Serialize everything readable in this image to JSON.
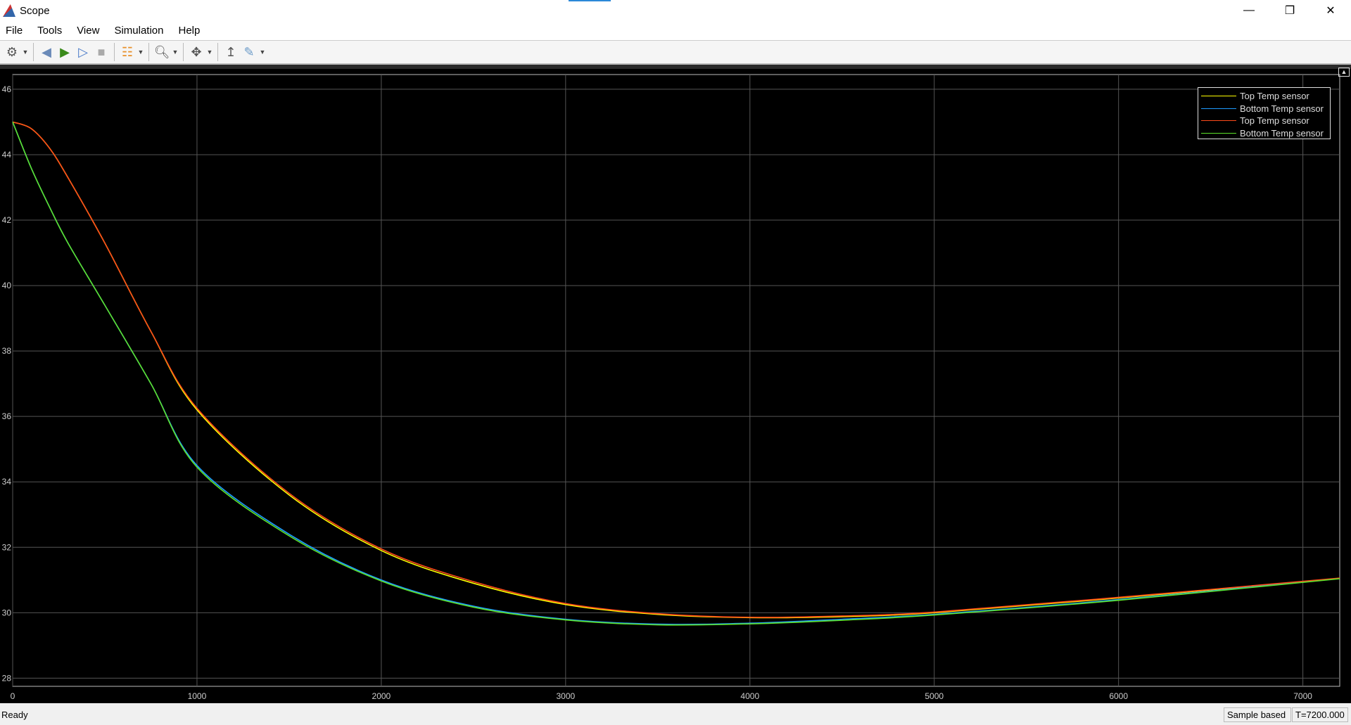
{
  "window": {
    "title": "Scope"
  },
  "menu": [
    "File",
    "Tools",
    "View",
    "Simulation",
    "Help"
  ],
  "toolbar": [
    {
      "icon": "settings-icon",
      "dropdown": true
    },
    {
      "icon": "step-back-icon"
    },
    {
      "icon": "run-icon"
    },
    {
      "icon": "step-forward-icon"
    },
    {
      "icon": "stop-icon"
    },
    {
      "icon": "signal-highlight-icon",
      "dropdown": true
    },
    {
      "icon": "zoom-in-icon",
      "dropdown": true
    },
    {
      "icon": "autoscale-icon",
      "dropdown": true
    },
    {
      "icon": "triggers-icon"
    },
    {
      "icon": "measurements-icon",
      "dropdown": true
    }
  ],
  "status": {
    "text": "Ready",
    "mode": "Sample based",
    "time": "T=7200.000"
  },
  "chart_data": {
    "type": "line",
    "xlim": [
      0,
      7200
    ],
    "ylim": [
      27.75,
      46.45
    ],
    "xticks": [
      0,
      1000,
      2000,
      3000,
      4000,
      5000,
      6000,
      7000
    ],
    "yticks": [
      28,
      30,
      32,
      34,
      36,
      38,
      40,
      42,
      44,
      46
    ],
    "grid": true,
    "legend_placement": "top-right",
    "background": "#000000",
    "x": [
      0,
      100,
      200,
      300,
      500,
      750,
      1000,
      1500,
      2000,
      2500,
      3000,
      3500,
      4000,
      4500,
      5000,
      6000,
      7200
    ],
    "series": [
      {
        "name": "Top Temp sensor",
        "color": "#ffff00",
        "values": [
          45,
          44.8,
          44.2,
          43.3,
          41.3,
          38.6,
          36.2,
          33.6,
          31.9,
          30.9,
          30.25,
          29.95,
          29.85,
          29.88,
          30.0,
          30.45,
          31.05
        ]
      },
      {
        "name": "Bottom Temp sensor",
        "color": "#1e9bff",
        "values": [
          45,
          43.6,
          42.4,
          41.3,
          39.4,
          37.0,
          34.5,
          32.4,
          31.0,
          30.2,
          29.8,
          29.65,
          29.68,
          29.8,
          29.95,
          30.4,
          31.05
        ]
      },
      {
        "name": "Top Temp sensor",
        "color": "#ff4a1a",
        "values": [
          45,
          44.8,
          44.2,
          43.3,
          41.3,
          38.6,
          36.25,
          33.65,
          31.95,
          30.95,
          30.28,
          29.97,
          29.86,
          29.9,
          30.02,
          30.47,
          31.06
        ]
      },
      {
        "name": "Bottom Temp sensor",
        "color": "#5ce12a",
        "values": [
          45,
          43.6,
          42.4,
          41.3,
          39.4,
          37.0,
          34.45,
          32.35,
          30.97,
          30.17,
          29.78,
          29.63,
          29.66,
          29.77,
          29.93,
          30.38,
          31.04
        ]
      }
    ]
  }
}
